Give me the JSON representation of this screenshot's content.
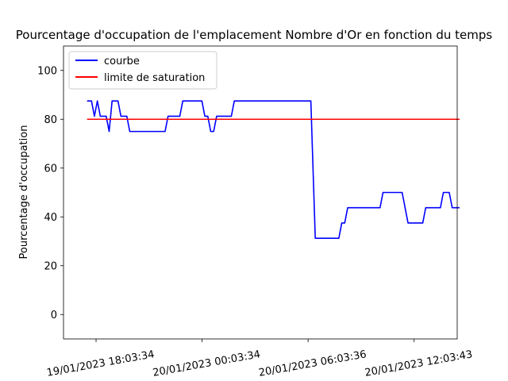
{
  "chart_data": {
    "type": "line",
    "title": "Pourcentage d'occupation de l'emplacement Nombre d'Or en fonction du temps",
    "xlabel": "",
    "ylabel": "Pourcentage d'occupation",
    "ylim": [
      -10,
      110
    ],
    "yticks": [
      0,
      20,
      40,
      60,
      80,
      100
    ],
    "xlim": [
      "19/01/2023 16:13",
      "20/01/2023 14:30"
    ],
    "xticks": [
      "19/01/2023 18:03:34",
      "20/01/2023 00:03:34",
      "20/01/2023 06:03:36",
      "20/01/2023 12:03:43"
    ],
    "grid": false,
    "legend_position": "upper left",
    "series": [
      {
        "name": "courbe",
        "color": "#0000ff",
        "points": [
          [
            "19/01/2023 17:33",
            87.5
          ],
          [
            "19/01/2023 17:48",
            87.5
          ],
          [
            "19/01/2023 17:58",
            81.25
          ],
          [
            "19/01/2023 18:08",
            87.5
          ],
          [
            "19/01/2023 18:18",
            81.25
          ],
          [
            "19/01/2023 18:38",
            81.25
          ],
          [
            "19/01/2023 18:48",
            75
          ],
          [
            "19/01/2023 18:58",
            87.5
          ],
          [
            "19/01/2023 19:18",
            87.5
          ],
          [
            "19/01/2023 19:28",
            81.25
          ],
          [
            "19/01/2023 19:48",
            81.25
          ],
          [
            "19/01/2023 19:58",
            75
          ],
          [
            "19/01/2023 21:58",
            75
          ],
          [
            "19/01/2023 22:08",
            81.25
          ],
          [
            "19/01/2023 22:48",
            81.25
          ],
          [
            "19/01/2023 22:58",
            87.5
          ],
          [
            "20/01/2023 00:03",
            87.5
          ],
          [
            "20/01/2023 00:13",
            81.25
          ],
          [
            "20/01/2023 00:23",
            81.25
          ],
          [
            "20/01/2023 00:33",
            75
          ],
          [
            "20/01/2023 00:43",
            75
          ],
          [
            "20/01/2023 00:53",
            81.25
          ],
          [
            "20/01/2023 01:43",
            81.25
          ],
          [
            "20/01/2023 01:53",
            87.5
          ],
          [
            "20/01/2023 06:13",
            87.5
          ],
          [
            "20/01/2023 06:28",
            31.25
          ],
          [
            "20/01/2023 07:48",
            31.25
          ],
          [
            "20/01/2023 07:58",
            37.5
          ],
          [
            "20/01/2023 08:08",
            37.5
          ],
          [
            "20/01/2023 08:18",
            43.75
          ],
          [
            "20/01/2023 10:08",
            43.75
          ],
          [
            "20/01/2023 10:18",
            50
          ],
          [
            "20/01/2023 11:23",
            50
          ],
          [
            "20/01/2023 11:43",
            37.5
          ],
          [
            "20/01/2023 12:33",
            37.5
          ],
          [
            "20/01/2023 12:43",
            43.75
          ],
          [
            "20/01/2023 13:33",
            43.75
          ],
          [
            "20/01/2023 13:43",
            50
          ],
          [
            "20/01/2023 14:03",
            50
          ],
          [
            "20/01/2023 14:13",
            43.75
          ],
          [
            "20/01/2023 14:38",
            43.75
          ]
        ]
      },
      {
        "name": "limite de saturation",
        "color": "#ff0000",
        "points": [
          [
            "19/01/2023 17:33",
            80
          ],
          [
            "20/01/2023 14:38",
            80
          ]
        ]
      }
    ]
  }
}
